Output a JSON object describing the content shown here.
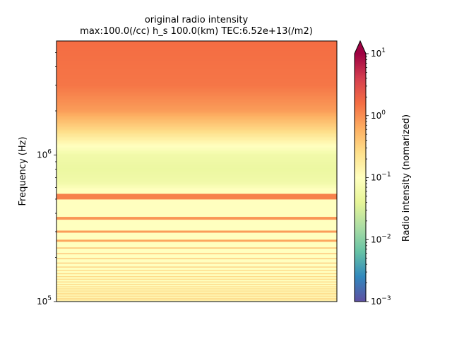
{
  "chart_data": {
    "type": "heatmap",
    "title": "original radio intensity",
    "subtitle": "max:100.0(/cc) h_s 100.0(km) TEC:6.52e+13(/m2)",
    "xlabel": "",
    "ylabel": "Frequency (Hz)",
    "y_scale": "log",
    "ylim": [
      100000,
      6000000
    ],
    "y_ticks": [
      {
        "value": 100000,
        "base": "10",
        "exp": "5"
      },
      {
        "value": 1000000,
        "base": "10",
        "exp": "6"
      }
    ],
    "colorbar": {
      "label": "Radio intensity (nomarized)",
      "scale": "log",
      "range": [
        0.001,
        10
      ],
      "extend": "max",
      "colormap": "Spectral_r",
      "ticks": [
        {
          "value": 0.001,
          "base": "10",
          "exp": "−3"
        },
        {
          "value": 0.01,
          "base": "10",
          "exp": "−2"
        },
        {
          "value": 0.1,
          "base": "10",
          "exp": "−1"
        },
        {
          "value": 1,
          "base": "10",
          "exp": "0"
        },
        {
          "value": 10,
          "base": "10",
          "exp": "1"
        }
      ]
    },
    "intensity_profile": [
      {
        "frequency": 6000000,
        "intensity": 1.6
      },
      {
        "frequency": 3000000,
        "intensity": 1.4
      },
      {
        "frequency": 2000000,
        "intensity": 0.8
      },
      {
        "frequency": 1500000,
        "intensity": 0.3
      },
      {
        "frequency": 1200000,
        "intensity": 0.12
      },
      {
        "frequency": 1000000,
        "intensity": 0.06
      },
      {
        "frequency": 800000,
        "intensity": 0.05
      },
      {
        "frequency": 650000,
        "intensity": 0.06
      },
      {
        "frequency": 580000,
        "intensity": 0.1
      },
      {
        "frequency": 100000,
        "intensity": 0.1
      }
    ],
    "resonance_lines": [
      {
        "frequency": 520000,
        "intensity": 1.2
      },
      {
        "frequency": 370000,
        "intensity": 0.9
      },
      {
        "frequency": 300000,
        "intensity": 0.8
      },
      {
        "frequency": 260000,
        "intensity": 0.7
      },
      {
        "frequency": 232000,
        "intensity": 0.6
      },
      {
        "frequency": 212000,
        "intensity": 0.5
      },
      {
        "frequency": 196000,
        "intensity": 0.45
      },
      {
        "frequency": 183000,
        "intensity": 0.4
      },
      {
        "frequency": 172000,
        "intensity": 0.35
      },
      {
        "frequency": 163000,
        "intensity": 0.3
      },
      {
        "frequency": 155000,
        "intensity": 0.3
      },
      {
        "frequency": 148000,
        "intensity": 0.3
      },
      {
        "frequency": 142000,
        "intensity": 0.3
      },
      {
        "frequency": 136000,
        "intensity": 0.3
      },
      {
        "frequency": 131000,
        "intensity": 0.3
      },
      {
        "frequency": 126000,
        "intensity": 0.3
      },
      {
        "frequency": 122000,
        "intensity": 0.3
      },
      {
        "frequency": 118000,
        "intensity": 0.3
      },
      {
        "frequency": 114000,
        "intensity": 0.3
      },
      {
        "frequency": 111000,
        "intensity": 0.3
      },
      {
        "frequency": 108000,
        "intensity": 0.3
      },
      {
        "frequency": 105000,
        "intensity": 0.3
      },
      {
        "frequency": 102500,
        "intensity": 0.3
      }
    ]
  }
}
